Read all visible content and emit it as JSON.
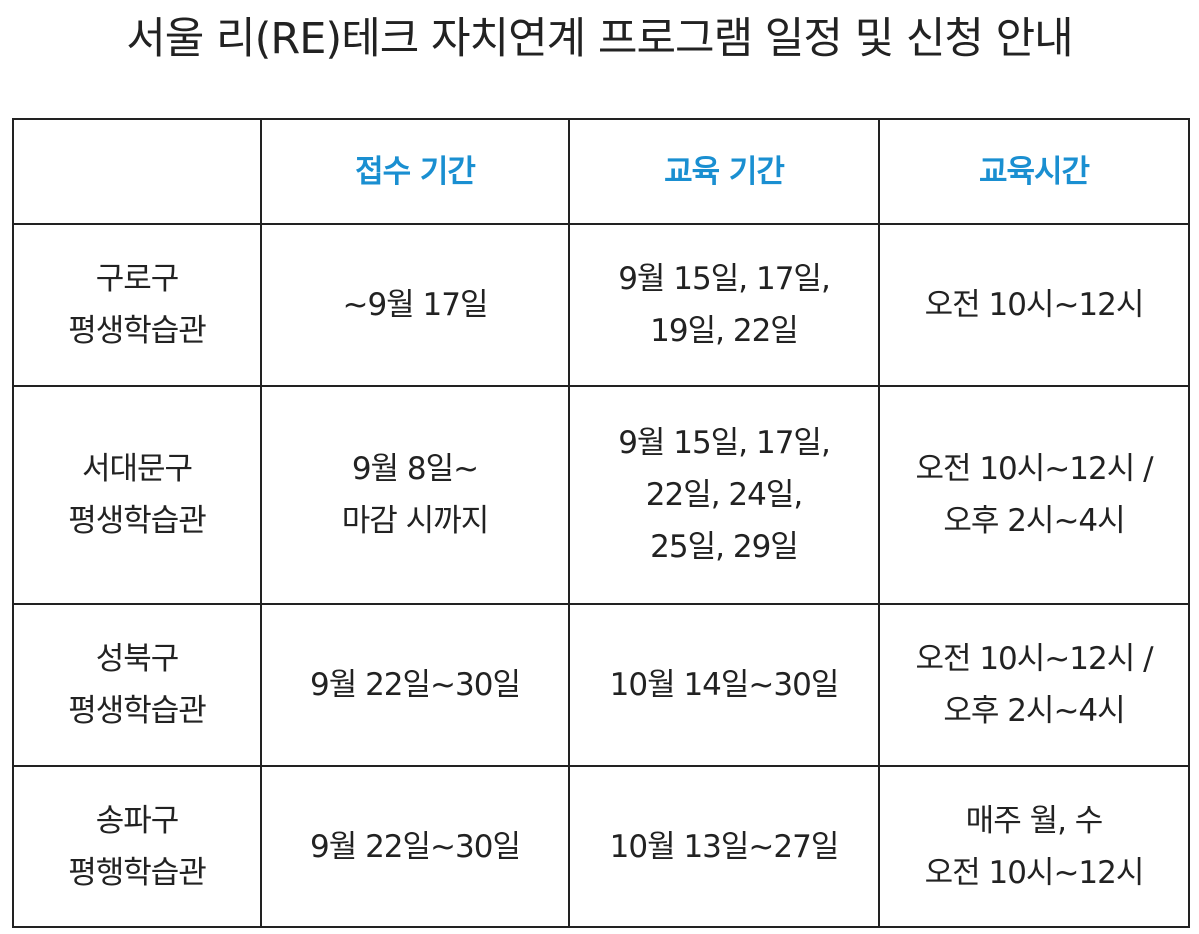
{
  "header": {
    "title": "서울 리(RE)테크 자치연계 프로그램 일정 및 신청 안내"
  },
  "table": {
    "columns": [
      "접수 기간",
      "교육 기간",
      "교육시간"
    ],
    "rows": [
      [
        [
          "구로구",
          "평생학습관"
        ],
        [
          "~9월 17일"
        ],
        [
          "9월 15일, 17일,",
          "19일, 22일"
        ],
        [
          "오전 10시~12시"
        ]
      ],
      [
        [
          "서대문구",
          "평생학습관"
        ],
        [
          "9월 8일~",
          "마감 시까지"
        ],
        [
          "9월 15일, 17일,",
          "22일, 24일,",
          "25일, 29일"
        ],
        [
          "오전 10시~12시 /",
          "오후 2시~4시"
        ]
      ],
      [
        [
          "성북구",
          "평생학습관"
        ],
        [
          "9월 22일~30일"
        ],
        [
          "10월 14일~30일"
        ],
        [
          "오전 10시~12시 /",
          "오후 2시~4시"
        ]
      ],
      [
        [
          "송파구",
          "평행학습관"
        ],
        [
          "9월 22일~30일"
        ],
        [
          "10월 13일~27일"
        ],
        [
          "매주 월, 수",
          "오전 10시~12시"
        ]
      ]
    ]
  }
}
